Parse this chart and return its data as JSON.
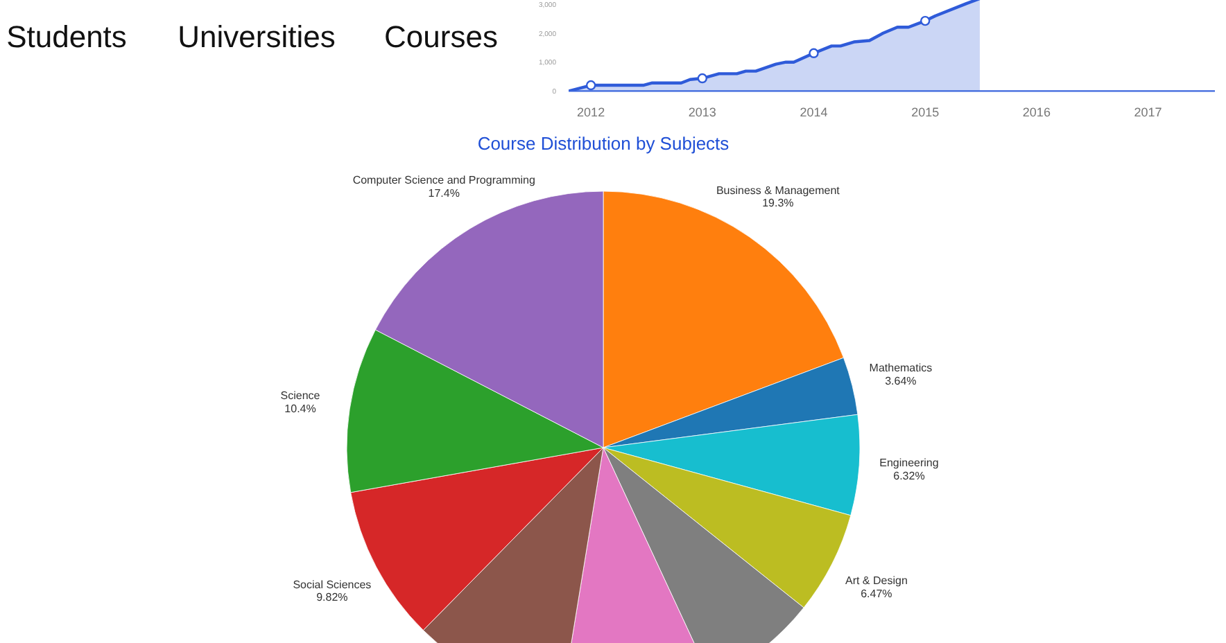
{
  "chart_data": [
    {
      "type": "other",
      "annotations": [
        "Students",
        "Universities",
        "Courses"
      ]
    },
    {
      "type": "area",
      "xlim": [
        2011.8,
        2017.6
      ],
      "ylim": [
        0,
        3200
      ],
      "xticks": [
        {
          "value": 2012,
          "label": "2012"
        },
        {
          "value": 2013,
          "label": "2013"
        },
        {
          "value": 2014,
          "label": "2014"
        },
        {
          "value": 2015,
          "label": "2015"
        },
        {
          "value": 2016,
          "label": "2016"
        },
        {
          "value": 2017,
          "label": "2017"
        }
      ],
      "yticks": [
        {
          "value": 0,
          "label": "0"
        },
        {
          "value": 1000,
          "label": "1,000"
        },
        {
          "value": 2000,
          "label": "2,000"
        },
        {
          "value": 3000,
          "label": "3,000"
        }
      ],
      "grid": false,
      "series": [
        {
          "type": "area",
          "color": "#2f5bd9",
          "x": [
            2011.8,
            2012,
            2012.47,
            2012.55,
            2012.81,
            2012.89,
            2013,
            2013.15,
            2013.31,
            2013.39,
            2013.48,
            2013.66,
            2013.75,
            2013.82,
            2014,
            2014.16,
            2014.24,
            2014.36,
            2014.5,
            2014.62,
            2014.75,
            2014.85,
            2015,
            2015.09,
            2015.37,
            2015.49
          ],
          "values": [
            0,
            200,
            200,
            280,
            280,
            400,
            440,
            600,
            600,
            690,
            690,
            930,
            1000,
            1000,
            1310,
            1560,
            1560,
            1700,
            1750,
            2000,
            2210,
            2210,
            2430,
            2600,
            3030,
            3200
          ]
        },
        {
          "type": "scatter",
          "color": "#2f5bd9",
          "marker": "circle",
          "x": [
            2012,
            2013,
            2014,
            2015
          ],
          "values": [
            200,
            440,
            1310,
            2430
          ]
        }
      ]
    },
    {
      "type": "pie",
      "title": "Course Distribution by Subjects",
      "value_labels": [
        "19.3%",
        "3.64%",
        "6.32%",
        "6.47%",
        null,
        null,
        null,
        "9.82%",
        "10.4%",
        "17.4%"
      ],
      "categories": [
        "Business & Management",
        "Mathematics",
        "Engineering",
        "Art & Design",
        null,
        null,
        null,
        "Social Sciences",
        "Science",
        "Computer Science and Programming"
      ],
      "values": [
        19.3,
        3.64,
        6.32,
        6.47,
        7.35,
        9.5,
        9.8,
        9.82,
        10.4,
        17.4
      ],
      "colors": [
        "#ff7f0e",
        "#1f77b4",
        "#17becf",
        "#bcbd22",
        "#7f7f7f",
        "#e377c2",
        "#8c564b",
        "#d62728",
        "#2ca02c",
        "#9467bd"
      ]
    }
  ]
}
